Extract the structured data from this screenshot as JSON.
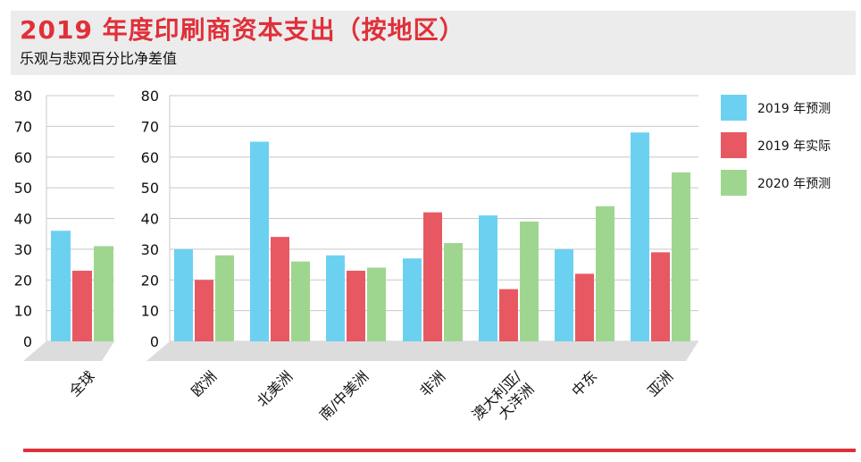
{
  "header": {
    "title": "2019 年度印刷商资本支出（按地区）",
    "subtitle": "乐观与悲观百分比净差值"
  },
  "colors": {
    "forecast_2019": "#6cd1f1",
    "actual_2019": "#e85863",
    "forecast_2020": "#9fd68f",
    "title_red": "#e0303a",
    "header_band": "#ececec",
    "floor": "#dcdcdc"
  },
  "legend": {
    "items": [
      {
        "label": "2019 年预测",
        "color": "#6cd1f1"
      },
      {
        "label": "2019 年实际",
        "color": "#e85863"
      },
      {
        "label": "2020 年预测",
        "color": "#9fd68f"
      }
    ]
  },
  "chart_data": [
    {
      "type": "bar",
      "title": "",
      "xlabel": "",
      "ylabel": "",
      "ylim": [
        0,
        80
      ],
      "yticks": [
        0,
        10,
        20,
        30,
        40,
        50,
        60,
        70,
        80
      ],
      "grid": true,
      "categories": [
        "全球"
      ],
      "series": [
        {
          "name": "2019 年预测",
          "values": [
            36
          ]
        },
        {
          "name": "2019 年实际",
          "values": [
            23
          ]
        },
        {
          "name": "2020 年预测",
          "values": [
            31
          ]
        }
      ]
    },
    {
      "type": "bar",
      "title": "",
      "xlabel": "",
      "ylabel": "",
      "ylim": [
        0,
        80
      ],
      "yticks": [
        0,
        10,
        20,
        30,
        40,
        50,
        60,
        70,
        80
      ],
      "grid": true,
      "legend_position": "right",
      "categories": [
        "欧洲",
        "北美洲",
        "南/中美洲",
        "非洲",
        "澳大利亚/大洋洲",
        "中东",
        "亚洲"
      ],
      "category_lines": [
        [
          "欧洲"
        ],
        [
          "北美洲"
        ],
        [
          "南/中美洲"
        ],
        [
          "非洲"
        ],
        [
          "澳大利亚/",
          "大洋洲"
        ],
        [
          "中东"
        ],
        [
          "亚洲"
        ]
      ],
      "series": [
        {
          "name": "2019 年预测",
          "values": [
            30,
            65,
            28,
            27,
            41,
            30,
            68
          ]
        },
        {
          "name": "2019 年实际",
          "values": [
            20,
            34,
            23,
            42,
            17,
            22,
            29
          ]
        },
        {
          "name": "2020 年预测",
          "values": [
            28,
            26,
            24,
            32,
            39,
            44,
            55
          ]
        }
      ]
    }
  ]
}
